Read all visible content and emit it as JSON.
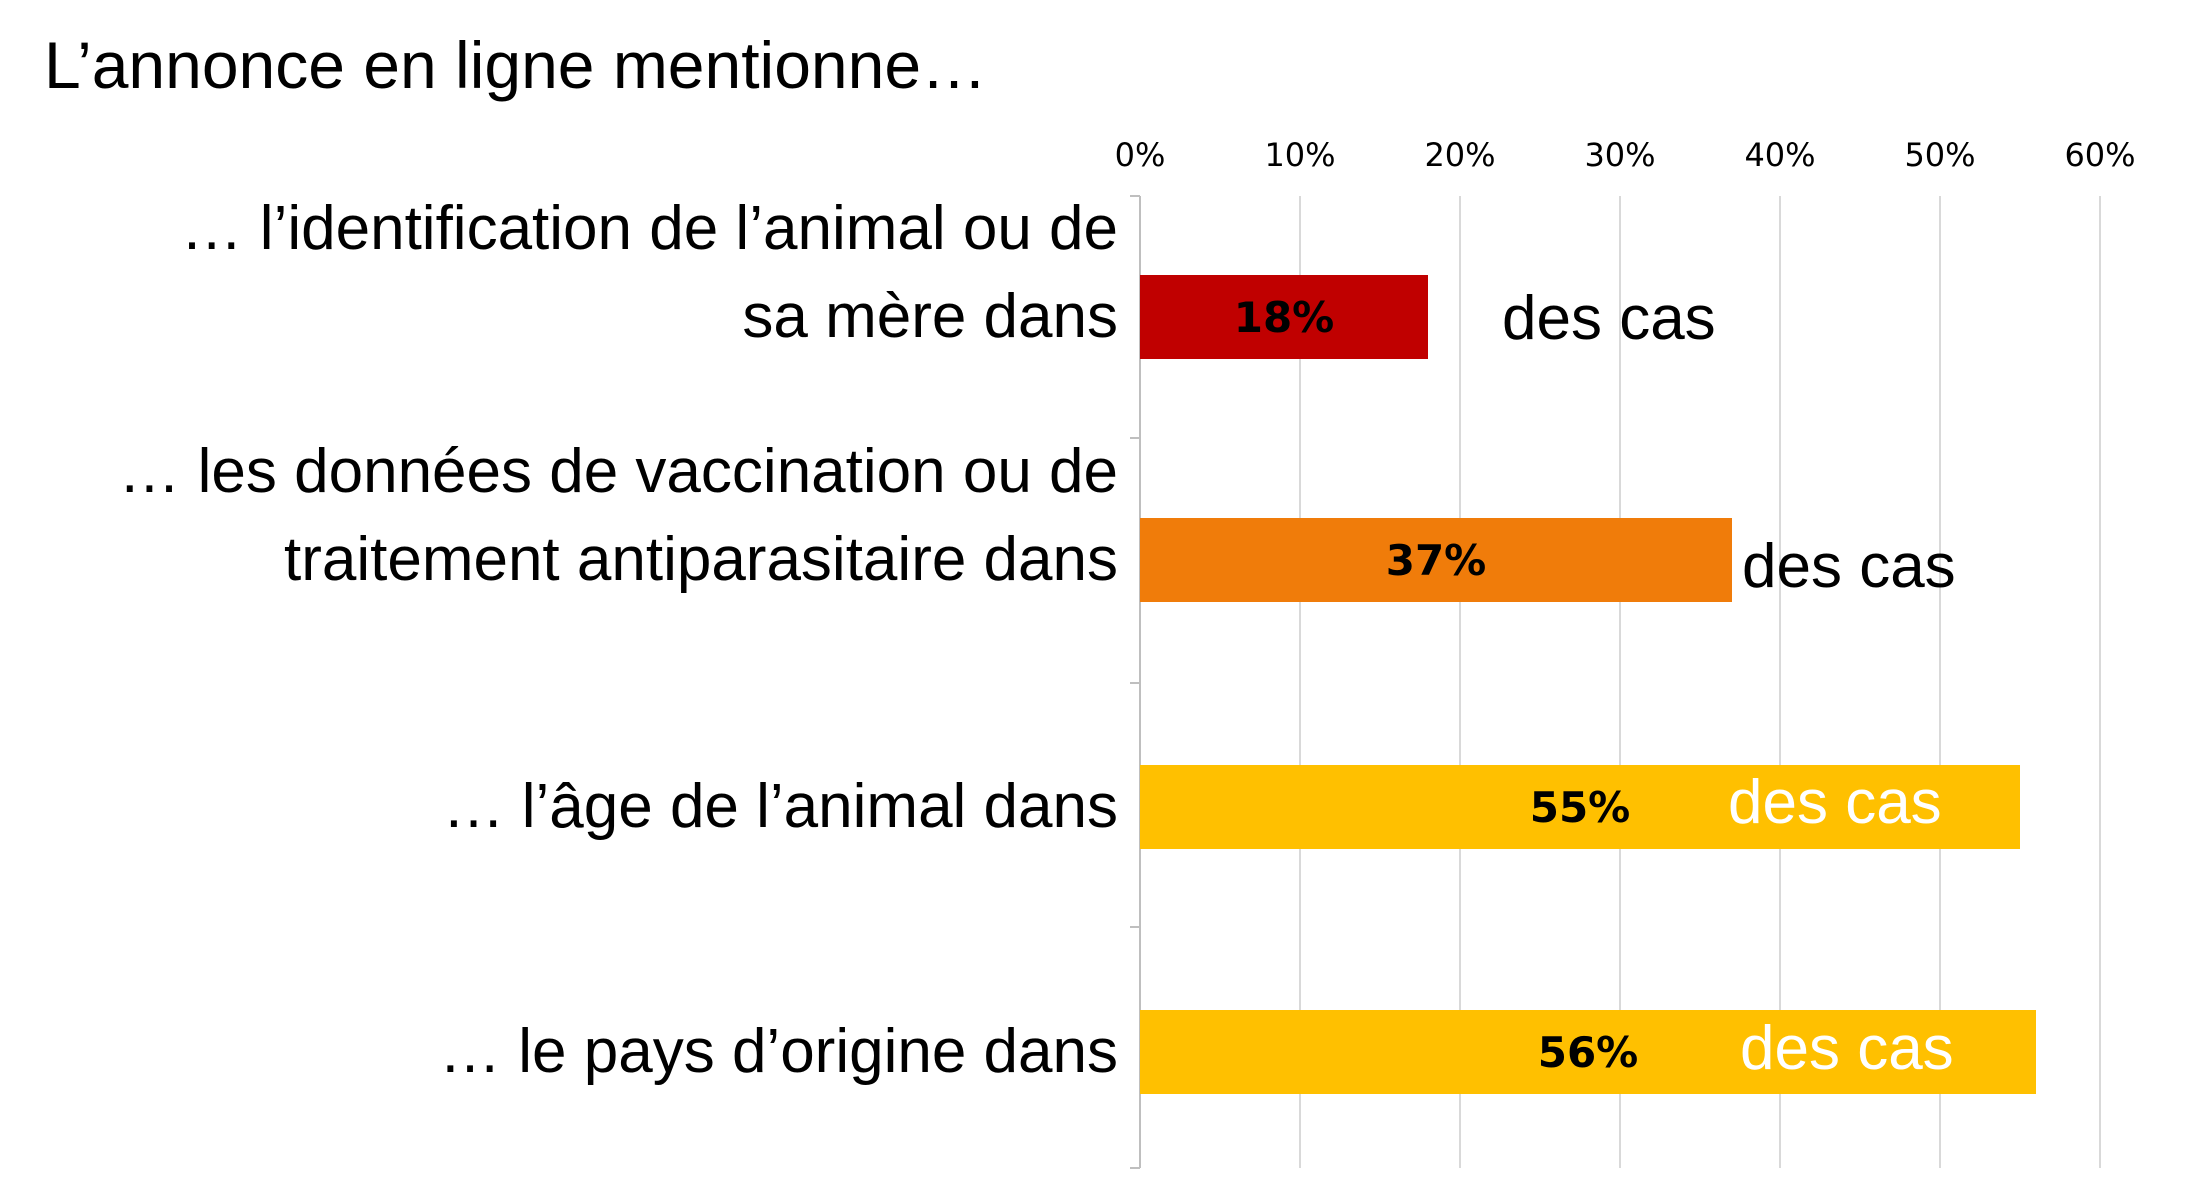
{
  "chart_data": {
    "type": "bar",
    "orientation": "horizontal",
    "title": "L’annonce en ligne mentionne…",
    "categories": [
      [
        "… l’identification de l’animal ou de",
        "sa mère dans"
      ],
      [
        "… les données de vaccination ou de",
        "traitement antiparasitaire dans"
      ],
      [
        "… l’âge de l’animal dans"
      ],
      [
        "… le pays d’origine dans"
      ]
    ],
    "values": [
      18,
      37,
      55,
      56
    ],
    "value_labels": [
      "18%",
      "37%",
      "55%",
      "56%"
    ],
    "suffix": "des cas",
    "xlim": [
      0,
      60
    ],
    "x_ticks": [
      "0%",
      "10%",
      "20%",
      "30%",
      "40%",
      "50%",
      "60%"
    ],
    "x_tick_values": [
      0,
      10,
      20,
      30,
      40,
      50,
      60
    ],
    "grid": true,
    "legend": "none",
    "colors": [
      "#C00000",
      "#F07C0A",
      "#FFC000",
      "#FFC000"
    ],
    "suffix_colors": [
      "#000000",
      "#000000",
      "#FFFFFF",
      "#FFFFFF"
    ]
  }
}
